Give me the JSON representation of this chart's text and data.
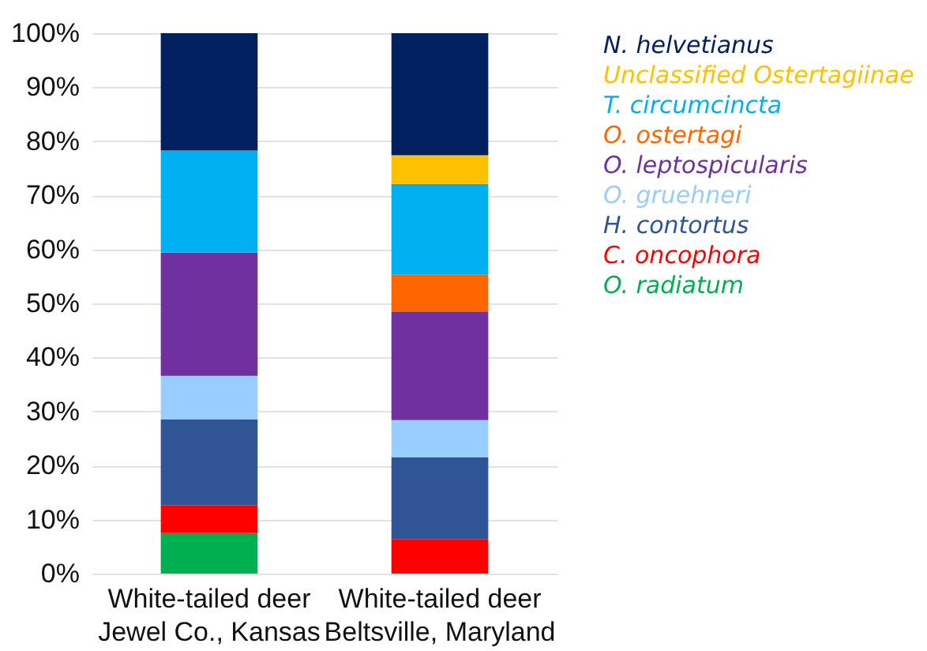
{
  "chart_data": {
    "type": "bar",
    "stacked": true,
    "categories": [
      "White-tailed deer\nJewel Co., Kansas",
      "White-tailed deer\nBeltsville, Maryland"
    ],
    "series": [
      {
        "name": "O. radiatum",
        "color": "#00b050",
        "values": [
          7.5,
          null
        ]
      },
      {
        "name": "C. oncophora",
        "color": "#ff0000",
        "values": [
          5.1,
          6.4
        ]
      },
      {
        "name": "H. contortus",
        "color": "#2f5597",
        "values": [
          15.9,
          15.1
        ]
      },
      {
        "name": "O. gruehneri",
        "color": "#99ccff",
        "values": [
          8.1,
          6.9
        ]
      },
      {
        "name": "O. leptospicularis",
        "color": "#7030a0",
        "values": [
          22.8,
          20.1
        ]
      },
      {
        "name": "O. ostertagi",
        "color": "#ff6600",
        "values": [
          null,
          6.8
        ]
      },
      {
        "name": "T. circumcincta",
        "color": "#00b0f0",
        "values": [
          18.9,
          16.8
        ]
      },
      {
        "name": "Unclassified Ostertagiinae",
        "color": "#ffc000",
        "values": [
          null,
          5.3
        ]
      },
      {
        "name": "N. helvetianus",
        "color": "#002060",
        "values": [
          21.7,
          22.6
        ]
      }
    ],
    "ylim": [
      0,
      100
    ],
    "yticks": [
      {
        "value": 0,
        "label": "0%"
      },
      {
        "value": 10,
        "label": "10%"
      },
      {
        "value": 20,
        "label": "20%"
      },
      {
        "value": 30,
        "label": "30%"
      },
      {
        "value": 40,
        "label": "40%"
      },
      {
        "value": 50,
        "label": "50%"
      },
      {
        "value": 60,
        "label": "60%"
      },
      {
        "value": 70,
        "label": "70%"
      },
      {
        "value": 80,
        "label": "80%"
      },
      {
        "value": 90,
        "label": "90%"
      },
      {
        "value": 100,
        "label": "100%"
      }
    ],
    "grid": "y",
    "legend": "right"
  }
}
